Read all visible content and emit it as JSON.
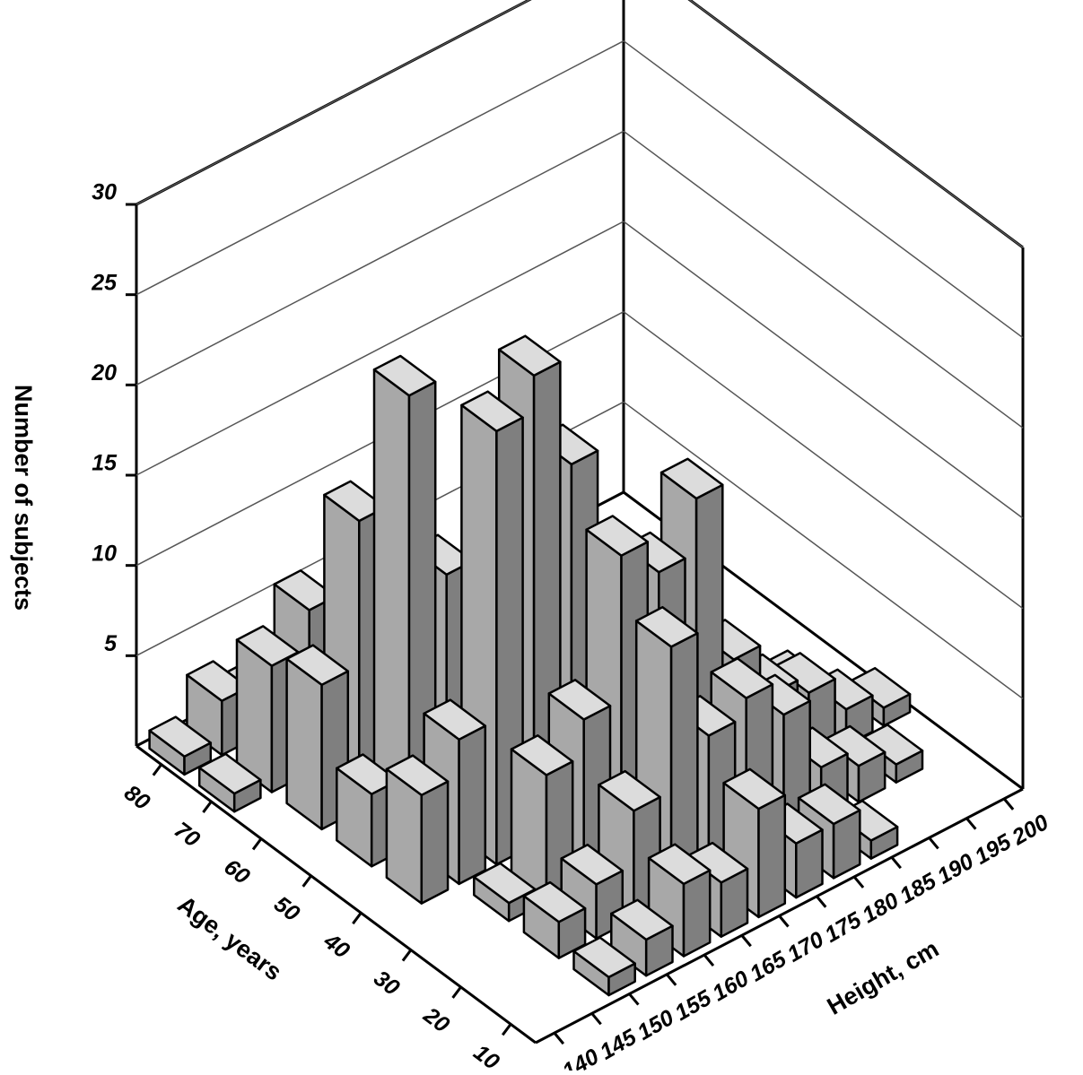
{
  "chart_data": {
    "type": "bar3d",
    "y_label": "Number of subjects",
    "age_label": "Age, years",
    "height_label": "Height, cm",
    "zlim": [
      0,
      30
    ],
    "zticks": [
      5,
      10,
      15,
      20,
      25,
      30
    ],
    "agelim": [
      5,
      85
    ],
    "ageticks": [
      10,
      20,
      30,
      40,
      50,
      60,
      70,
      80
    ],
    "heightlim": [
      137.5,
      202.5
    ],
    "heightticks": [
      140,
      145,
      150,
      155,
      160,
      165,
      170,
      175,
      180,
      185,
      190,
      195,
      200
    ],
    "grid": true,
    "color": "#bdbdbd",
    "age": [
      80,
      80,
      80,
      70,
      70,
      70,
      70,
      70,
      60,
      60,
      60,
      60,
      60,
      60,
      50,
      50,
      50,
      50,
      50,
      50,
      50,
      50,
      50,
      40,
      40,
      40,
      40,
      40,
      40,
      40,
      40,
      40,
      40,
      40,
      30,
      30,
      30,
      30,
      30,
      30,
      30,
      30,
      30,
      30,
      30,
      20,
      20,
      20,
      20,
      20,
      20,
      20,
      20,
      20,
      20,
      10,
      10,
      10,
      10,
      10,
      10,
      10,
      10
    ],
    "height": [
      140,
      145,
      150,
      140,
      145,
      150,
      155,
      160,
      145,
      150,
      155,
      160,
      165,
      170,
      145,
      150,
      155,
      160,
      165,
      170,
      175,
      180,
      185,
      145,
      150,
      155,
      160,
      165,
      170,
      175,
      180,
      185,
      190,
      195,
      150,
      155,
      160,
      165,
      170,
      175,
      180,
      185,
      190,
      195,
      200,
      150,
      155,
      160,
      165,
      170,
      175,
      180,
      185,
      190,
      195,
      150,
      155,
      160,
      165,
      170,
      175,
      180,
      185
    ],
    "values": [
      1,
      3,
      2,
      1,
      7,
      9,
      4,
      2,
      8,
      16,
      10,
      5,
      3,
      2,
      4,
      25,
      14,
      8,
      12,
      6,
      3,
      2,
      1,
      6,
      8,
      24,
      26,
      20,
      11,
      9,
      5,
      3,
      2,
      1,
      1,
      7,
      9,
      17,
      15,
      18,
      8,
      5,
      4,
      2,
      1,
      2,
      3,
      6,
      14,
      8,
      9,
      7,
      3,
      2,
      1,
      1,
      2,
      4,
      3,
      6,
      3,
      3,
      1
    ]
  }
}
